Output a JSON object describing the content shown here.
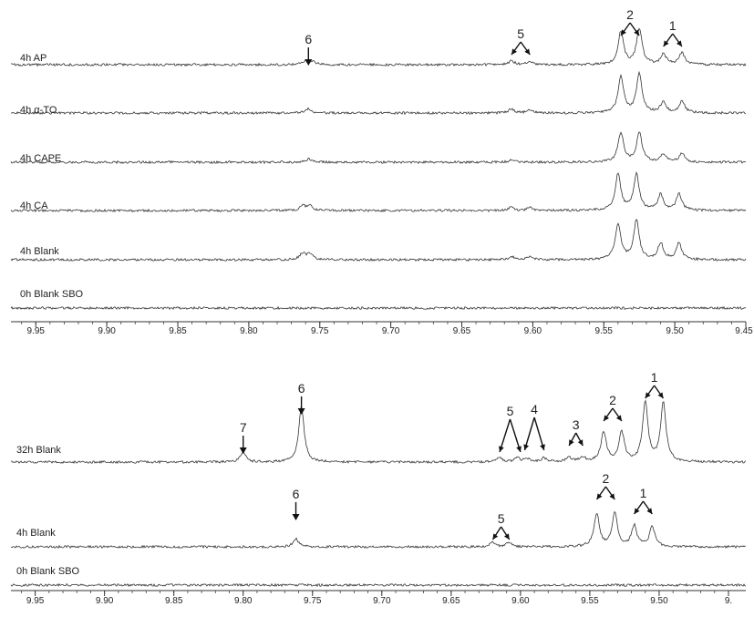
{
  "chart_data": [
    {
      "type": "line",
      "panel": "top",
      "xlabel": "",
      "xlim": [
        9.45,
        9.99
      ],
      "x_reversed": true,
      "ticks": [
        "9.95",
        "9.90",
        "9.85",
        "9.80",
        "9.75",
        "9.70",
        "9.65",
        "9.60",
        "9.55",
        "9.50",
        "9.45"
      ],
      "series": [
        {
          "name": "4h AP",
          "peaks": [
            {
              "x": 9.76,
              "h": 0.06
            },
            {
              "x": 9.755,
              "h": 0.05
            },
            {
              "x": 9.615,
              "h": 0.06
            },
            {
              "x": 9.602,
              "h": 0.05
            },
            {
              "x": 9.538,
              "h": 0.5
            },
            {
              "x": 9.525,
              "h": 0.55
            },
            {
              "x": 9.508,
              "h": 0.16
            },
            {
              "x": 9.495,
              "h": 0.18
            }
          ]
        },
        {
          "name": "4h α-TO",
          "peaks": [
            {
              "x": 9.758,
              "h": 0.07
            },
            {
              "x": 9.615,
              "h": 0.06
            },
            {
              "x": 9.602,
              "h": 0.05
            },
            {
              "x": 9.538,
              "h": 0.55
            },
            {
              "x": 9.525,
              "h": 0.6
            },
            {
              "x": 9.508,
              "h": 0.17
            },
            {
              "x": 9.495,
              "h": 0.18
            }
          ]
        },
        {
          "name": "4h CAPE",
          "peaks": [
            {
              "x": 9.758,
              "h": 0.05
            },
            {
              "x": 9.615,
              "h": 0.03
            },
            {
              "x": 9.538,
              "h": 0.45
            },
            {
              "x": 9.525,
              "h": 0.45
            },
            {
              "x": 9.508,
              "h": 0.13
            },
            {
              "x": 9.495,
              "h": 0.13
            }
          ]
        },
        {
          "name": "4h CA",
          "peaks": [
            {
              "x": 9.762,
              "h": 0.07
            },
            {
              "x": 9.757,
              "h": 0.08
            },
            {
              "x": 9.615,
              "h": 0.05
            },
            {
              "x": 9.602,
              "h": 0.04
            },
            {
              "x": 9.54,
              "h": 0.55
            },
            {
              "x": 9.527,
              "h": 0.55
            },
            {
              "x": 9.51,
              "h": 0.24
            },
            {
              "x": 9.497,
              "h": 0.25
            }
          ]
        },
        {
          "name": "4h Blank",
          "peaks": [
            {
              "x": 9.762,
              "h": 0.1
            },
            {
              "x": 9.757,
              "h": 0.09
            },
            {
              "x": 9.615,
              "h": 0.05
            },
            {
              "x": 9.602,
              "h": 0.05
            },
            {
              "x": 9.54,
              "h": 0.55
            },
            {
              "x": 9.527,
              "h": 0.6
            },
            {
              "x": 9.51,
              "h": 0.25
            },
            {
              "x": 9.497,
              "h": 0.25
            }
          ]
        },
        {
          "name": "0h Blank SBO",
          "peaks": []
        }
      ],
      "annotations": [
        {
          "label": "6",
          "x": 9.758
        },
        {
          "label": "5",
          "x1": 9.615,
          "x2": 9.602
        },
        {
          "label": "2",
          "x1": 9.538,
          "x2": 9.525
        },
        {
          "label": "1",
          "x1": 9.508,
          "x2": 9.495
        }
      ]
    },
    {
      "type": "line",
      "panel": "bottom",
      "xlabel": "",
      "xlim": [
        9.45,
        9.99
      ],
      "x_reversed": true,
      "ticks": [
        "9.95",
        "9.90",
        "9.85",
        "9.80",
        "9.75",
        "9.70",
        "9.65",
        "9.60",
        "9.55",
        "9.50",
        "9."
      ],
      "series": [
        {
          "name": "32h Blank",
          "peaks": [
            {
              "x": 9.8,
              "h": 0.15
            },
            {
              "x": 9.758,
              "h": 0.85
            },
            {
              "x": 9.615,
              "h": 0.07
            },
            {
              "x": 9.602,
              "h": 0.06
            },
            {
              "x": 9.595,
              "h": 0.05
            },
            {
              "x": 9.583,
              "h": 0.06
            },
            {
              "x": 9.565,
              "h": 0.07
            },
            {
              "x": 9.555,
              "h": 0.07
            },
            {
              "x": 9.54,
              "h": 0.45
            },
            {
              "x": 9.527,
              "h": 0.45
            },
            {
              "x": 9.51,
              "h": 0.9
            },
            {
              "x": 9.497,
              "h": 0.9
            }
          ]
        },
        {
          "name": "4h Blank",
          "peaks": [
            {
              "x": 9.762,
              "h": 0.12
            },
            {
              "x": 9.62,
              "h": 0.07
            },
            {
              "x": 9.608,
              "h": 0.07
            },
            {
              "x": 9.545,
              "h": 0.5
            },
            {
              "x": 9.532,
              "h": 0.5
            },
            {
              "x": 9.518,
              "h": 0.32
            },
            {
              "x": 9.505,
              "h": 0.3
            }
          ]
        },
        {
          "name": "0h Blank SBO",
          "peaks": []
        }
      ],
      "annotations": [
        {
          "label": "7",
          "x": 9.8
        },
        {
          "label": "6",
          "x": 9.758
        },
        {
          "label": "5",
          "x1": 9.615,
          "x2": 9.6
        },
        {
          "label": "4",
          "x1": 9.597,
          "x2": 9.583
        },
        {
          "label": "3",
          "x1": 9.565,
          "x2": 9.555
        },
        {
          "label": "2",
          "x1": 9.54,
          "x2": 9.527
        },
        {
          "label": "1",
          "x1": 9.51,
          "x2": 9.497
        },
        {
          "label": "6",
          "x": 9.762
        },
        {
          "label": "5",
          "x1": 9.62,
          "x2": 9.608
        },
        {
          "label": "2",
          "x1": 9.545,
          "x2": 9.532
        },
        {
          "label": "1",
          "x1": 9.518,
          "x2": 9.505
        }
      ]
    }
  ]
}
